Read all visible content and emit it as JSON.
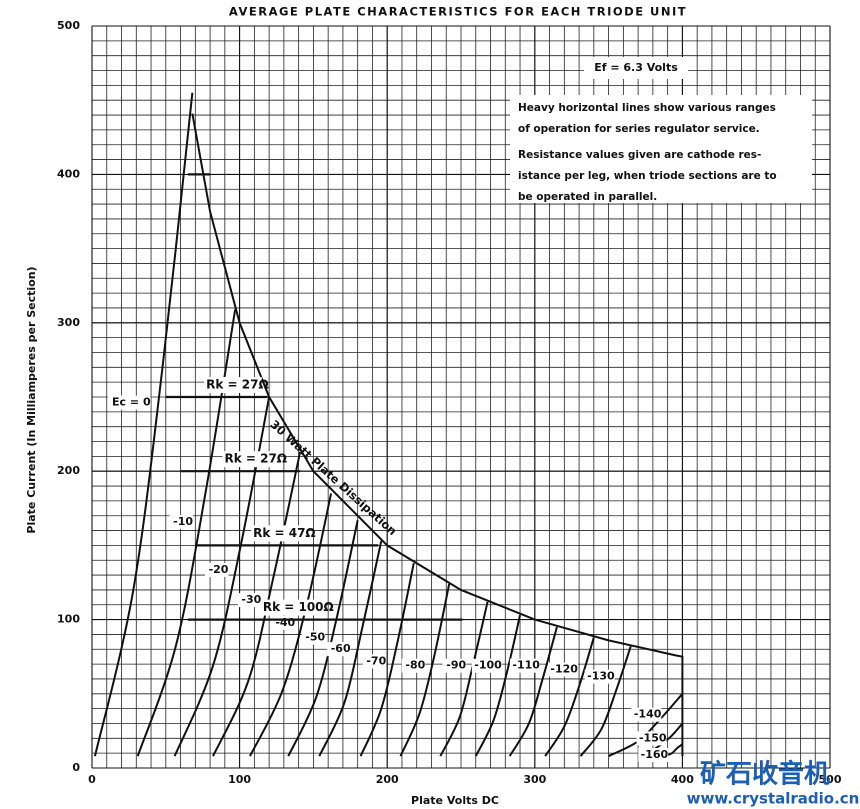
{
  "chart_data": {
    "type": "line",
    "title": "AVERAGE PLATE CHARACTERISTICS FOR EACH TRIODE UNIT",
    "x_label": "Plate Volts DC",
    "y_label": "Plate Current (In Milliamperes per Section)",
    "xlim": [
      0,
      500
    ],
    "ylim": [
      0,
      500
    ],
    "xticks": [
      0,
      100,
      200,
      300,
      400,
      500
    ],
    "yticks": [
      0,
      100,
      200,
      300,
      400,
      500
    ],
    "grid": true,
    "grid_step": 10,
    "color": "#111111",
    "series": [
      {
        "name": "Ec = 0",
        "x": [
          2,
          28,
          48,
          68
        ],
        "values": [
          8,
          120,
          272,
          455
        ]
      },
      {
        "name": "-10",
        "x": [
          31,
          57,
          77,
          97
        ],
        "values": [
          8,
          83,
          186,
          309
        ]
      },
      {
        "name": "-20",
        "x": [
          56,
          82,
          101,
          120
        ],
        "values": [
          8,
          69,
          151,
          250
        ]
      },
      {
        "name": "-30",
        "x": [
          82,
          106,
          123,
          141
        ],
        "values": [
          8,
          59,
          129,
          213
        ]
      },
      {
        "name": "-40",
        "x": [
          107,
          129,
          146,
          162
        ],
        "values": [
          8,
          52,
          112,
          185
        ]
      },
      {
        "name": "-50",
        "x": [
          133,
          152,
          166,
          180
        ],
        "values": [
          8,
          48,
          102,
          167
        ]
      },
      {
        "name": "-60",
        "x": [
          154,
          171,
          183,
          196
        ],
        "values": [
          8,
          44,
          94,
          153
        ]
      },
      {
        "name": "-70",
        "x": [
          182,
          196,
          207,
          218
        ],
        "values": [
          8,
          40,
          85,
          138
        ]
      },
      {
        "name": "-80",
        "x": [
          209,
          222,
          232,
          242
        ],
        "values": [
          8,
          37,
          76,
          124
        ]
      },
      {
        "name": "-90",
        "x": [
          236,
          249,
          258,
          268
        ],
        "values": [
          8,
          34,
          69,
          112
        ]
      },
      {
        "name": "-100",
        "x": [
          260,
          272,
          281,
          290
        ],
        "values": [
          8,
          32,
          64,
          103
        ]
      },
      {
        "name": "-110",
        "x": [
          283,
          296,
          305,
          315
        ],
        "values": [
          8,
          30,
          59,
          95
        ]
      },
      {
        "name": "-120",
        "x": [
          307,
          320,
          330,
          340
        ],
        "values": [
          8,
          28,
          55,
          88
        ]
      },
      {
        "name": "-130",
        "x": [
          331,
          345,
          355,
          365
        ],
        "values": [
          8,
          26,
          52,
          82
        ]
      },
      {
        "name": "-140",
        "x": [
          350,
          370,
          385,
          400
        ],
        "values": [
          8,
          18,
          33,
          50
        ]
      },
      {
        "name": "-150",
        "x": [
          372,
          383,
          392,
          400
        ],
        "values": [
          8,
          14,
          21,
          30
        ]
      },
      {
        "name": "-160",
        "x": [
          388,
          393,
          396,
          400
        ],
        "values": [
          8,
          10,
          13,
          16
        ]
      }
    ],
    "dissipation": {
      "name": "30 Watt Plate Dissipation",
      "x": [
        68,
        80,
        100,
        120,
        150,
        200,
        250,
        300,
        350,
        395,
        400,
        400
      ],
      "values": [
        441,
        375,
        300,
        250,
        200,
        150,
        120,
        100,
        86,
        76,
        75,
        8
      ]
    },
    "ranges": [
      {
        "x": [
          65,
          80
        ],
        "value": 400
      },
      {
        "label": "Rk = 27Ω",
        "x": [
          50,
          119
        ],
        "value": 250
      },
      {
        "label": "Rk = 27Ω",
        "x": [
          60,
          141
        ],
        "value": 200
      },
      {
        "label": "Rk = 47Ω",
        "x": [
          71,
          194
        ],
        "value": 150
      },
      {
        "label": "Rk = 100Ω",
        "x": [
          65,
          251
        ],
        "value": 100
      }
    ],
    "filament_note": "Ef = 6.3 Volts",
    "note_lines": [
      "Heavy horizontal lines show various ranges",
      "of operation for series regulator service.",
      "Resistance values given are cathode res-",
      "istance per leg, when triode sections are to",
      "be operated in parallel."
    ],
    "watermark": [
      "矿石收音机",
      "www.crystalradio.cn"
    ]
  }
}
